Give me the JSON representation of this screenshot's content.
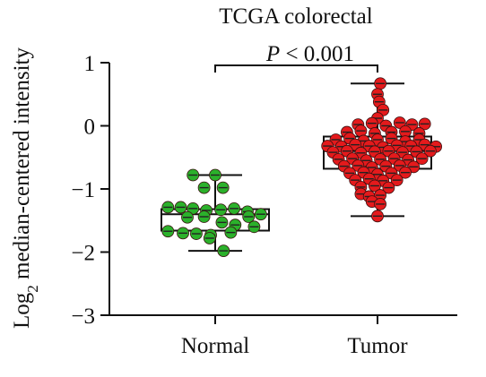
{
  "chart_data": {
    "type": "box-scatter",
    "title": "TCGA colorectal",
    "ylabel": "Log",
    "ylabel_sub": "2",
    "ylabel_rest": " median-centered intensity",
    "xlabel": "",
    "ylim": [
      -3,
      1
    ],
    "yticks": [
      1,
      0,
      -1,
      -2,
      -3
    ],
    "ytick_labels": [
      "1",
      "0",
      "−1",
      "−2",
      "−3"
    ],
    "categories": [
      "Normal",
      "Tumor"
    ],
    "annotation": {
      "p_letter": "P",
      "p_rest": " < 0.001"
    },
    "colors": {
      "Normal": "#2bb12b",
      "Tumor": "#e41a1c"
    },
    "series": [
      {
        "category": "Normal",
        "box": {
          "min": -1.98,
          "q1": -1.66,
          "median": -1.4,
          "q3": -1.32,
          "max": -0.78
        },
        "points": [
          [
            -0.4,
            -0.78
          ],
          [
            0.0,
            -0.78
          ],
          [
            -0.2,
            -0.98
          ],
          [
            0.14,
            -0.98
          ],
          [
            -0.85,
            -1.29
          ],
          [
            -0.62,
            -1.29
          ],
          [
            -0.4,
            -1.31
          ],
          [
            -0.16,
            -1.34
          ],
          [
            0.1,
            -1.33
          ],
          [
            0.34,
            -1.31
          ],
          [
            0.58,
            -1.36
          ],
          [
            0.82,
            -1.4
          ],
          [
            -0.5,
            -1.45
          ],
          [
            -0.2,
            -1.44
          ],
          [
            0.6,
            -1.44
          ],
          [
            0.12,
            -1.53
          ],
          [
            0.36,
            -1.57
          ],
          [
            0.7,
            -1.6
          ],
          [
            -0.85,
            -1.67
          ],
          [
            -0.58,
            -1.7
          ],
          [
            -0.34,
            -1.71
          ],
          [
            -0.08,
            -1.73
          ],
          [
            0.28,
            -1.69
          ],
          [
            -0.1,
            -1.78
          ],
          [
            0.15,
            -1.98
          ]
        ]
      },
      {
        "category": "Tumor",
        "box": {
          "min": -1.43,
          "q1": -0.68,
          "median": -0.4,
          "q3": -0.17,
          "max": 0.67
        },
        "points": [
          [
            0.05,
            0.67
          ],
          [
            0.0,
            0.5
          ],
          [
            0.03,
            0.38
          ],
          [
            0.1,
            0.25
          ],
          [
            0.0,
            0.12
          ],
          [
            -0.35,
            0.02
          ],
          [
            -0.1,
            0.04
          ],
          [
            0.15,
            0.0
          ],
          [
            0.4,
            0.05
          ],
          [
            0.62,
            0.02
          ],
          [
            0.85,
            0.03
          ],
          [
            -0.55,
            -0.1
          ],
          [
            -0.3,
            -0.08
          ],
          [
            -0.05,
            -0.12
          ],
          [
            0.25,
            -0.1
          ],
          [
            0.5,
            -0.09
          ],
          [
            0.75,
            -0.12
          ],
          [
            -0.75,
            -0.22
          ],
          [
            -0.5,
            -0.2
          ],
          [
            -0.25,
            -0.24
          ],
          [
            0.0,
            -0.22
          ],
          [
            0.25,
            -0.2
          ],
          [
            0.5,
            -0.25
          ],
          [
            0.75,
            -0.22
          ],
          [
            -0.9,
            -0.32
          ],
          [
            -0.65,
            -0.33
          ],
          [
            -0.4,
            -0.3
          ],
          [
            -0.15,
            -0.32
          ],
          [
            0.1,
            -0.34
          ],
          [
            0.35,
            -0.31
          ],
          [
            0.6,
            -0.32
          ],
          [
            0.85,
            -0.3
          ],
          [
            1.05,
            -0.33
          ],
          [
            -0.8,
            -0.42
          ],
          [
            -0.55,
            -0.4
          ],
          [
            -0.3,
            -0.43
          ],
          [
            -0.05,
            -0.41
          ],
          [
            0.2,
            -0.4
          ],
          [
            0.45,
            -0.42
          ],
          [
            0.7,
            -0.41
          ],
          [
            0.95,
            -0.4
          ],
          [
            -0.7,
            -0.53
          ],
          [
            -0.45,
            -0.52
          ],
          [
            -0.2,
            -0.55
          ],
          [
            0.05,
            -0.53
          ],
          [
            0.3,
            -0.52
          ],
          [
            0.55,
            -0.54
          ],
          [
            0.8,
            -0.52
          ],
          [
            -0.6,
            -0.64
          ],
          [
            -0.35,
            -0.63
          ],
          [
            -0.1,
            -0.66
          ],
          [
            0.15,
            -0.64
          ],
          [
            0.4,
            -0.63
          ],
          [
            0.65,
            -0.65
          ],
          [
            -0.5,
            -0.75
          ],
          [
            -0.25,
            -0.74
          ],
          [
            0.0,
            -0.77
          ],
          [
            0.25,
            -0.75
          ],
          [
            0.5,
            -0.74
          ],
          [
            -0.4,
            -0.86
          ],
          [
            -0.15,
            -0.84
          ],
          [
            0.1,
            -0.87
          ],
          [
            0.35,
            -0.86
          ],
          [
            -0.3,
            -0.97
          ],
          [
            -0.05,
            -0.95
          ],
          [
            0.2,
            -0.98
          ],
          [
            -0.3,
            -1.08
          ],
          [
            -0.15,
            -1.12
          ],
          [
            0.05,
            -1.1
          ],
          [
            -0.1,
            -1.2
          ],
          [
            0.05,
            -1.24
          ],
          [
            0.0,
            -1.43
          ]
        ]
      }
    ]
  }
}
